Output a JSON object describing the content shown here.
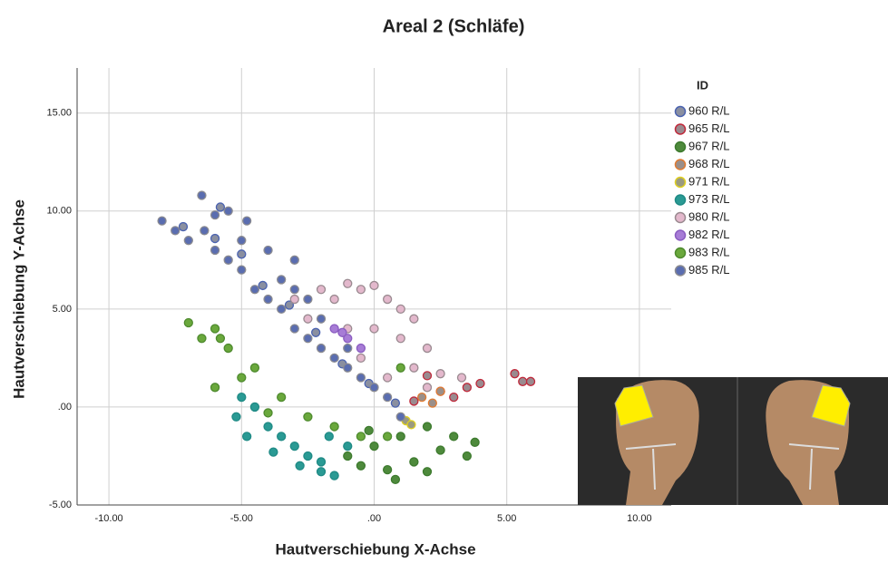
{
  "chart_data": {
    "type": "scatter",
    "title": "Areal 2 (Schläfe)",
    "x_label": "Hautverschiebung X-Achse",
    "y_label": "Hautverschiebung Y-Achse",
    "legend_title": "ID",
    "legend_position": "right",
    "grid": true,
    "xlim": [
      -11.2,
      11.2
    ],
    "ylim": [
      -5,
      17.3
    ],
    "xticks": [
      {
        "value": -10,
        "label": "-10.00"
      },
      {
        "value": -5,
        "label": "-5.00"
      },
      {
        "value": 0,
        "label": ".00"
      },
      {
        "value": 5,
        "label": "5.00"
      },
      {
        "value": 10,
        "label": "10.00"
      }
    ],
    "yticks": [
      {
        "value": -5,
        "label": "-5.00"
      },
      {
        "value": 0,
        "label": ".00"
      },
      {
        "value": 5,
        "label": "5.00"
      },
      {
        "value": 10,
        "label": "10.00"
      },
      {
        "value": 15,
        "label": "15.00"
      }
    ],
    "series": [
      {
        "name": "960 R/L",
        "color": "#8a8fa0",
        "edgecolor": "#4a62b0",
        "x": [
          -7.2,
          -6,
          -5,
          -4.2,
          -3.2,
          -2.2,
          -1.2,
          -0.2,
          0.8,
          -5.8
        ],
        "y": [
          9.2,
          8.6,
          7.8,
          6.2,
          5.2,
          3.8,
          2.2,
          1.2,
          0.2,
          10.2
        ]
      },
      {
        "name": "965 R/L",
        "color": "#9a8a8f",
        "edgecolor": "#c0283a",
        "x": [
          1.5,
          2,
          2.5,
          3,
          3.5,
          4,
          5.3,
          5.6,
          5.9
        ],
        "y": [
          0.3,
          1.6,
          0.8,
          0.5,
          1,
          1.2,
          1.7,
          1.3,
          1.3
        ]
      },
      {
        "name": "967 R/L",
        "color": "#4e8a3c",
        "edgecolor": "#3d7a2e",
        "x": [
          -1,
          -0.5,
          0,
          0.5,
          1,
          1.5,
          2,
          2.5,
          3,
          3.5,
          3.8,
          0.8,
          2,
          -0.2
        ],
        "y": [
          -2.5,
          -3,
          -2,
          -3.2,
          -1.5,
          -2.8,
          -1,
          -2.2,
          -1.5,
          -2.5,
          -1.8,
          -3.7,
          -3.3,
          -1.2
        ]
      },
      {
        "name": "968 R/L",
        "color": "#9a8f8a",
        "edgecolor": "#e07a30",
        "x": [
          1.8,
          2.2,
          2.5
        ],
        "y": [
          0.5,
          0.2,
          0.8
        ]
      },
      {
        "name": "971 R/L",
        "color": "#9a9a80",
        "edgecolor": "#e0d020",
        "x": [
          1.2,
          1.4
        ],
        "y": [
          -0.7,
          -0.9
        ]
      },
      {
        "name": "973 R/L",
        "color": "#2a9a94",
        "edgecolor": "#1f8a85",
        "x": [
          -5,
          -4.5,
          -4,
          -3.5,
          -3,
          -2.5,
          -2,
          -1.5,
          -1,
          -5.2,
          -4.8,
          -3.8,
          -2.8,
          -2,
          -1.7
        ],
        "y": [
          0.5,
          0,
          -1,
          -1.5,
          -2,
          -2.5,
          -2.8,
          -3.5,
          -2,
          -0.5,
          -1.5,
          -2.3,
          -3,
          -3.3,
          -1.5
        ]
      },
      {
        "name": "980 R/L",
        "color": "#e3b8cc",
        "edgecolor": "#9a8a90",
        "x": [
          -3,
          -2,
          -1.5,
          -1,
          -0.5,
          0,
          0.5,
          1,
          1.5,
          2,
          2.5,
          -2.5,
          -1,
          0,
          1,
          1.5,
          0.5,
          -0.5,
          3.3,
          2
        ],
        "y": [
          5.5,
          6,
          5.5,
          6.3,
          6,
          6.2,
          5.5,
          5,
          4.5,
          3,
          1.7,
          4.5,
          4,
          4,
          3.5,
          2,
          1.5,
          2.5,
          1.5,
          1
        ]
      },
      {
        "name": "982 R/L",
        "color": "#a77cd6",
        "edgecolor": "#8a5cc0",
        "x": [
          -1.5,
          -1,
          -0.5,
          -1.2
        ],
        "y": [
          4,
          3.5,
          3,
          3.8
        ]
      },
      {
        "name": "983 R/L",
        "color": "#6aa83c",
        "edgecolor": "#4e8a2e",
        "x": [
          -7,
          -6.5,
          -6,
          -5.5,
          -5,
          -4.5,
          -3.5,
          -2.5,
          -1.5,
          -0.5,
          0.5,
          1,
          -6,
          -5.8,
          -4
        ],
        "y": [
          4.3,
          3.5,
          4,
          3,
          1.5,
          2,
          0.5,
          -0.5,
          -1,
          -1.5,
          -1.5,
          2,
          1,
          3.5,
          -0.3
        ]
      },
      {
        "name": "985 R/L",
        "color": "#5a6db0",
        "edgecolor": "#8a8a90",
        "x": [
          -8,
          -7.5,
          -7,
          -6.5,
          -6.4,
          -6,
          -5.5,
          -5,
          -4.8,
          -4.5,
          -4,
          -3.5,
          -3,
          -3,
          -2.5,
          -2,
          -1.5,
          -1,
          -0.5,
          0,
          0.5,
          1,
          -5.5,
          -4,
          -3,
          -2,
          -1,
          -6,
          -5,
          -3.5,
          -2.5
        ],
        "y": [
          9.5,
          9,
          8.5,
          10.8,
          9,
          8,
          7.5,
          7,
          9.5,
          6,
          5.5,
          5,
          4,
          7.5,
          3.5,
          3,
          2.5,
          2,
          1.5,
          1,
          0.5,
          -0.5,
          10,
          8,
          6,
          4.5,
          3,
          9.8,
          8.5,
          6.5,
          5.5
        ]
      }
    ]
  }
}
